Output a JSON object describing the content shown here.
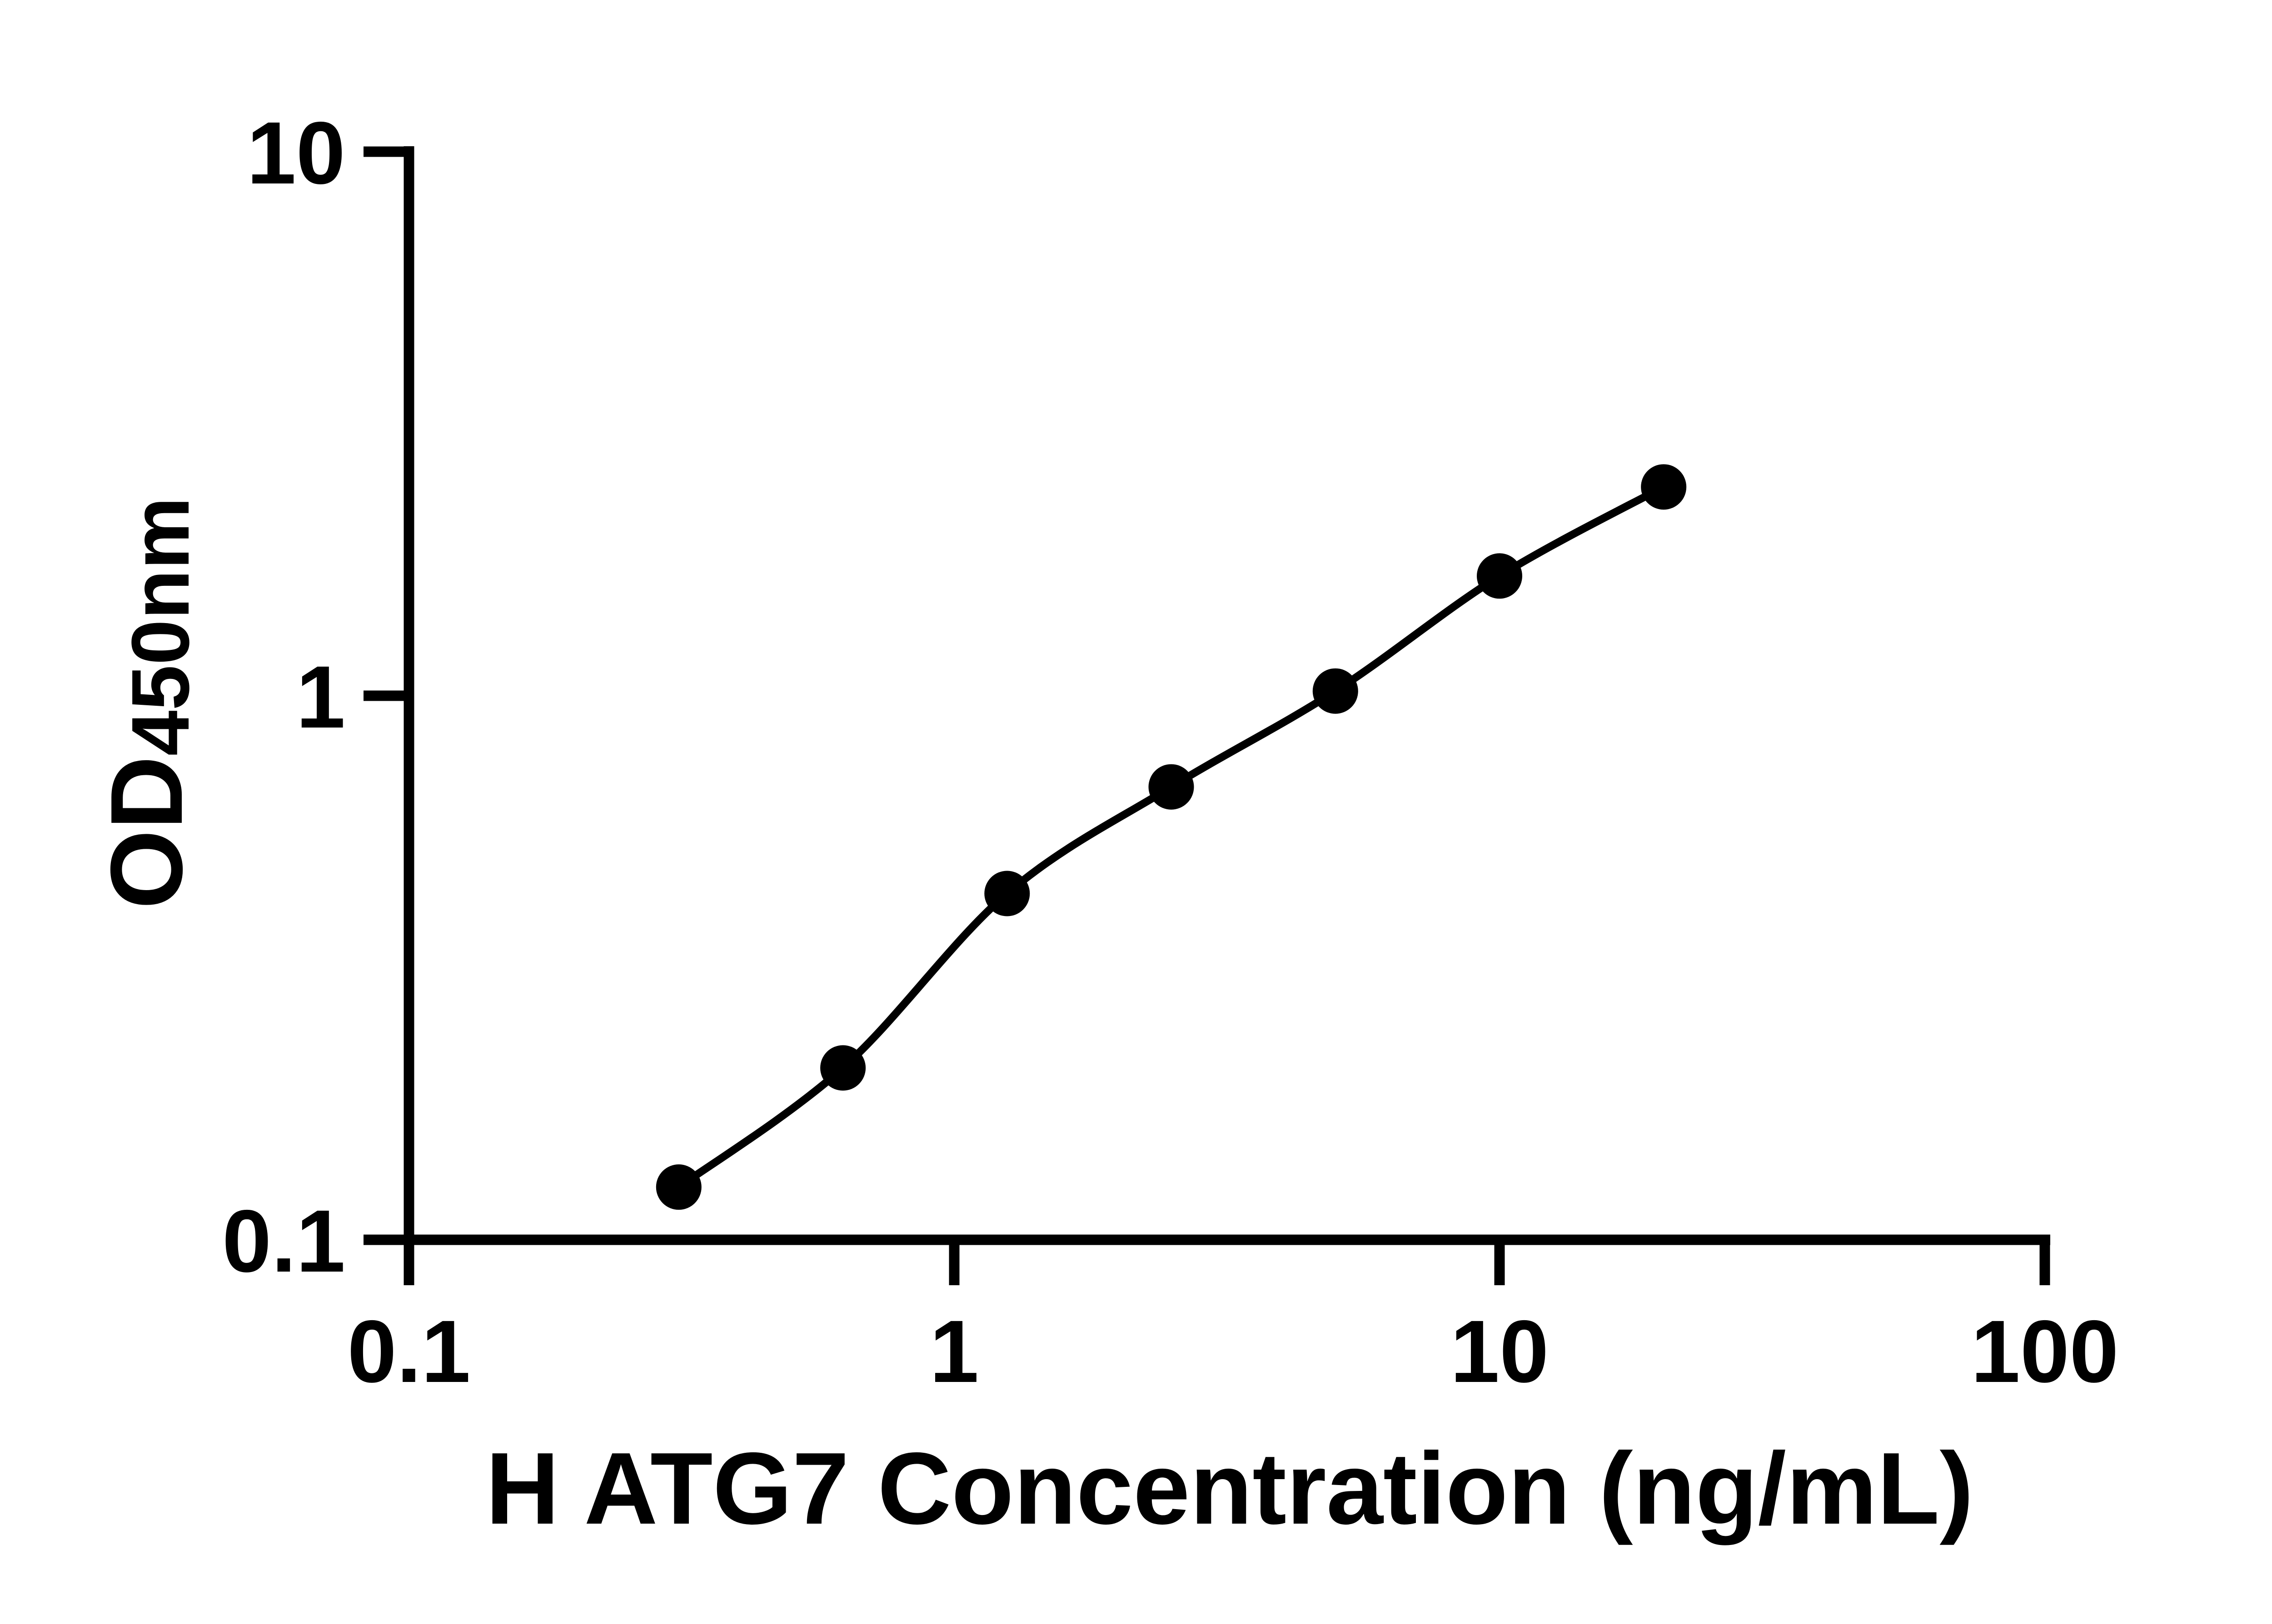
{
  "figure": {
    "background_color": "#ffffff",
    "ink_color": "#000000"
  },
  "chart_data": {
    "type": "scatter",
    "subtype": "elisa-standard-curve-with-fit",
    "title": "",
    "xlabel": "H ATG7 Concentration (ng/mL)",
    "ylabel_main": "OD",
    "ylabel_sub": "450nm",
    "x_scale": "log10",
    "y_scale": "log10",
    "xlim": [
      0.1,
      100
    ],
    "ylim": [
      0.1,
      10
    ],
    "x_tick_labels": [
      "0.1",
      "1",
      "10",
      "100"
    ],
    "x_tick_values": [
      0.1,
      1,
      10,
      100
    ],
    "y_tick_labels": [
      "10",
      "1",
      "0.1"
    ],
    "y_tick_values": [
      10,
      1,
      0.1
    ],
    "grid": false,
    "legend_position": "none",
    "marker": "filled-circle",
    "series": [
      {
        "name": "standard-curve",
        "color": "#000000",
        "points": [
          {
            "x": 0.3125,
            "y": 0.125
          },
          {
            "x": 0.625,
            "y": 0.207
          },
          {
            "x": 1.25,
            "y": 0.433
          },
          {
            "x": 2.5,
            "y": 0.68
          },
          {
            "x": 5,
            "y": 1.02
          },
          {
            "x": 10,
            "y": 1.66
          },
          {
            "x": 20,
            "y": 2.42
          }
        ]
      }
    ]
  }
}
